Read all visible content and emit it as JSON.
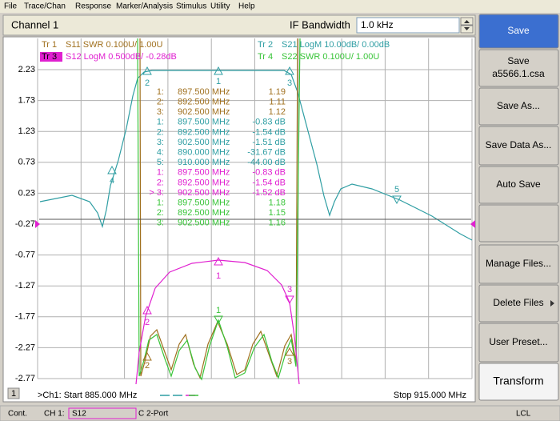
{
  "menu": [
    "File",
    "Trace/Chan",
    "Response",
    "Marker/Analysis",
    "Stimulus",
    "Utility",
    "Help"
  ],
  "header": {
    "channel": "Channel 1",
    "if_label": "IF Bandwidth",
    "if_value": "1.0 kHz"
  },
  "traces": [
    {
      "id": "Tr 1",
      "desc": "S11 SWR 0.100U/ 1.00U",
      "color": "#a0701e",
      "active": false
    },
    {
      "id": "Tr 2",
      "desc": "S21 LogM 10.00dB/ 0.00dB",
      "color": "#2f9ea3",
      "active": false
    },
    {
      "id": "Tr 3",
      "desc": "S12 LogM 0.500dB/ -0.28dB",
      "color": "#e020d0",
      "active": true
    },
    {
      "id": "Tr 4",
      "desc": "S22 SWR 0.100U/ 1.00U",
      "color": "#38c438",
      "active": false
    }
  ],
  "y_axis_labels": [
    "2.23",
    "1.73",
    "1.23",
    "0.73",
    "0.23",
    "-0.27",
    "-0.77",
    "-1.27",
    "-1.77",
    "-2.27",
    "-2.77"
  ],
  "marker_table": [
    {
      "id": "1:",
      "freq": "897.500 MHz",
      "value": "1.19",
      "color": "#a0701e"
    },
    {
      "id": "2:",
      "freq": "892.500 MHz",
      "value": "1.11",
      "color": "#a0701e"
    },
    {
      "id": "3:",
      "freq": "902.500 MHz",
      "value": "1.12",
      "color": "#a0701e"
    },
    {
      "id": "1:",
      "freq": "897.500 MHz",
      "value": "-0.83 dB",
      "color": "#2f9ea3"
    },
    {
      "id": "2:",
      "freq": "892.500 MHz",
      "value": "-1.54 dB",
      "color": "#2f9ea3"
    },
    {
      "id": "3:",
      "freq": "902.500 MHz",
      "value": "-1.51 dB",
      "color": "#2f9ea3"
    },
    {
      "id": "4:",
      "freq": "890.000 MHz",
      "value": "-31.67 dB",
      "color": "#2f9ea3"
    },
    {
      "id": "5:",
      "freq": "910.000 MHz",
      "value": "-44.00 dB",
      "color": "#2f9ea3"
    },
    {
      "id": "1:",
      "freq": "897.500 MHz",
      "value": "-0.83 dB",
      "color": "#e020d0"
    },
    {
      "id": "2:",
      "freq": "892.500 MHz",
      "value": "-1.54 dB",
      "color": "#e020d0"
    },
    {
      "id": "> 3:",
      "freq": "902.500 MHz",
      "value": "-1.52 dB",
      "color": "#e020d0"
    },
    {
      "id": "1:",
      "freq": "897.500 MHz",
      "value": "1.18",
      "color": "#38c438"
    },
    {
      "id": "2:",
      "freq": "892.500 MHz",
      "value": "1.15",
      "color": "#38c438"
    },
    {
      "id": "3:",
      "freq": "902.500 MHz",
      "value": "1.16",
      "color": "#38c438"
    }
  ],
  "markers": [
    {
      "label": "2",
      "color": "#2f9ea3"
    },
    {
      "label": "1",
      "color": "#2f9ea3"
    },
    {
      "label": "3",
      "color": "#2f9ea3"
    },
    {
      "label": "4",
      "color": "#2f9ea3"
    },
    {
      "label": "5",
      "color": "#2f9ea3"
    },
    {
      "label": "1",
      "color": "#e020d0"
    },
    {
      "label": "2",
      "color": "#e020d0"
    },
    {
      "label": "3",
      "color": "#e020d0"
    },
    {
      "label": "1",
      "color": "#38c438"
    },
    {
      "label": "2",
      "color": "#a0701e"
    },
    {
      "label": "3",
      "color": "#a0701e"
    }
  ],
  "footer": {
    "window": "1",
    "start": ">Ch1: Start 885.000 MHz",
    "stop": "Stop 915.000 MHz"
  },
  "softkeys": [
    {
      "label": "Save"
    },
    {
      "label": "Save",
      "sub": "a5566.1.csa"
    },
    {
      "label": "Save As..."
    },
    {
      "label": "Save Data As..."
    },
    {
      "label": "Auto Save"
    },
    {
      "label": ""
    },
    {
      "label": "Manage Files..."
    },
    {
      "label": "Delete Files"
    },
    {
      "label": "User Preset..."
    },
    {
      "label": "Transform"
    }
  ],
  "status": {
    "mode": "Cont.",
    "channel": "CH 1:",
    "param": "S12",
    "cal": "C 2-Port",
    "ref": "LCL"
  }
}
